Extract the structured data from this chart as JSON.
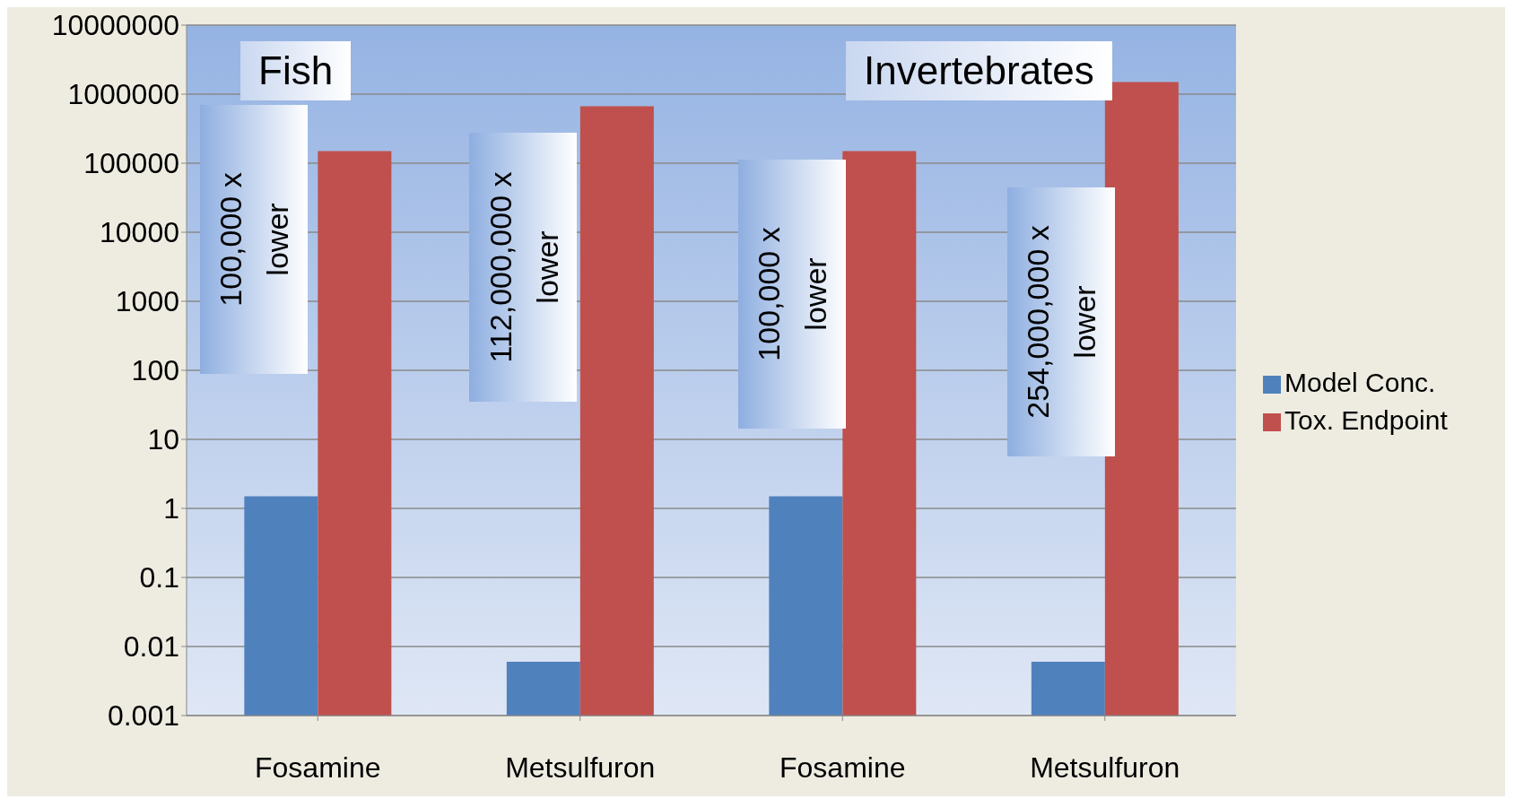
{
  "chart_data": {
    "type": "bar",
    "categories": [
      "Fosamine",
      "Metsulfuron",
      "Fosamine",
      "Metsulfuron"
    ],
    "series": [
      {
        "name": "Model Conc.",
        "color": "#4f81bd",
        "values": [
          1.5,
          0.006,
          1.5,
          0.006
        ]
      },
      {
        "name": "Tox. Endpoint",
        "color": "#c0504d",
        "values": [
          150000,
          670000,
          150000,
          1500000
        ]
      }
    ],
    "log": true,
    "ylim": [
      0.001,
      10000000
    ],
    "yticks": [
      {
        "value": 0.001,
        "label": "0.001"
      },
      {
        "value": 0.01,
        "label": "0.01"
      },
      {
        "value": 0.1,
        "label": "0.1"
      },
      1,
      10,
      100,
      1000,
      10000,
      100000,
      1000000,
      10000000
    ],
    "grid": "y",
    "legend": "right",
    "annotations": [
      "Fish",
      "Invertebrates",
      "100,000 x lower",
      "112,000,000 x lower",
      "100,000 x lower",
      "254,000,000 x lower"
    ]
  }
}
